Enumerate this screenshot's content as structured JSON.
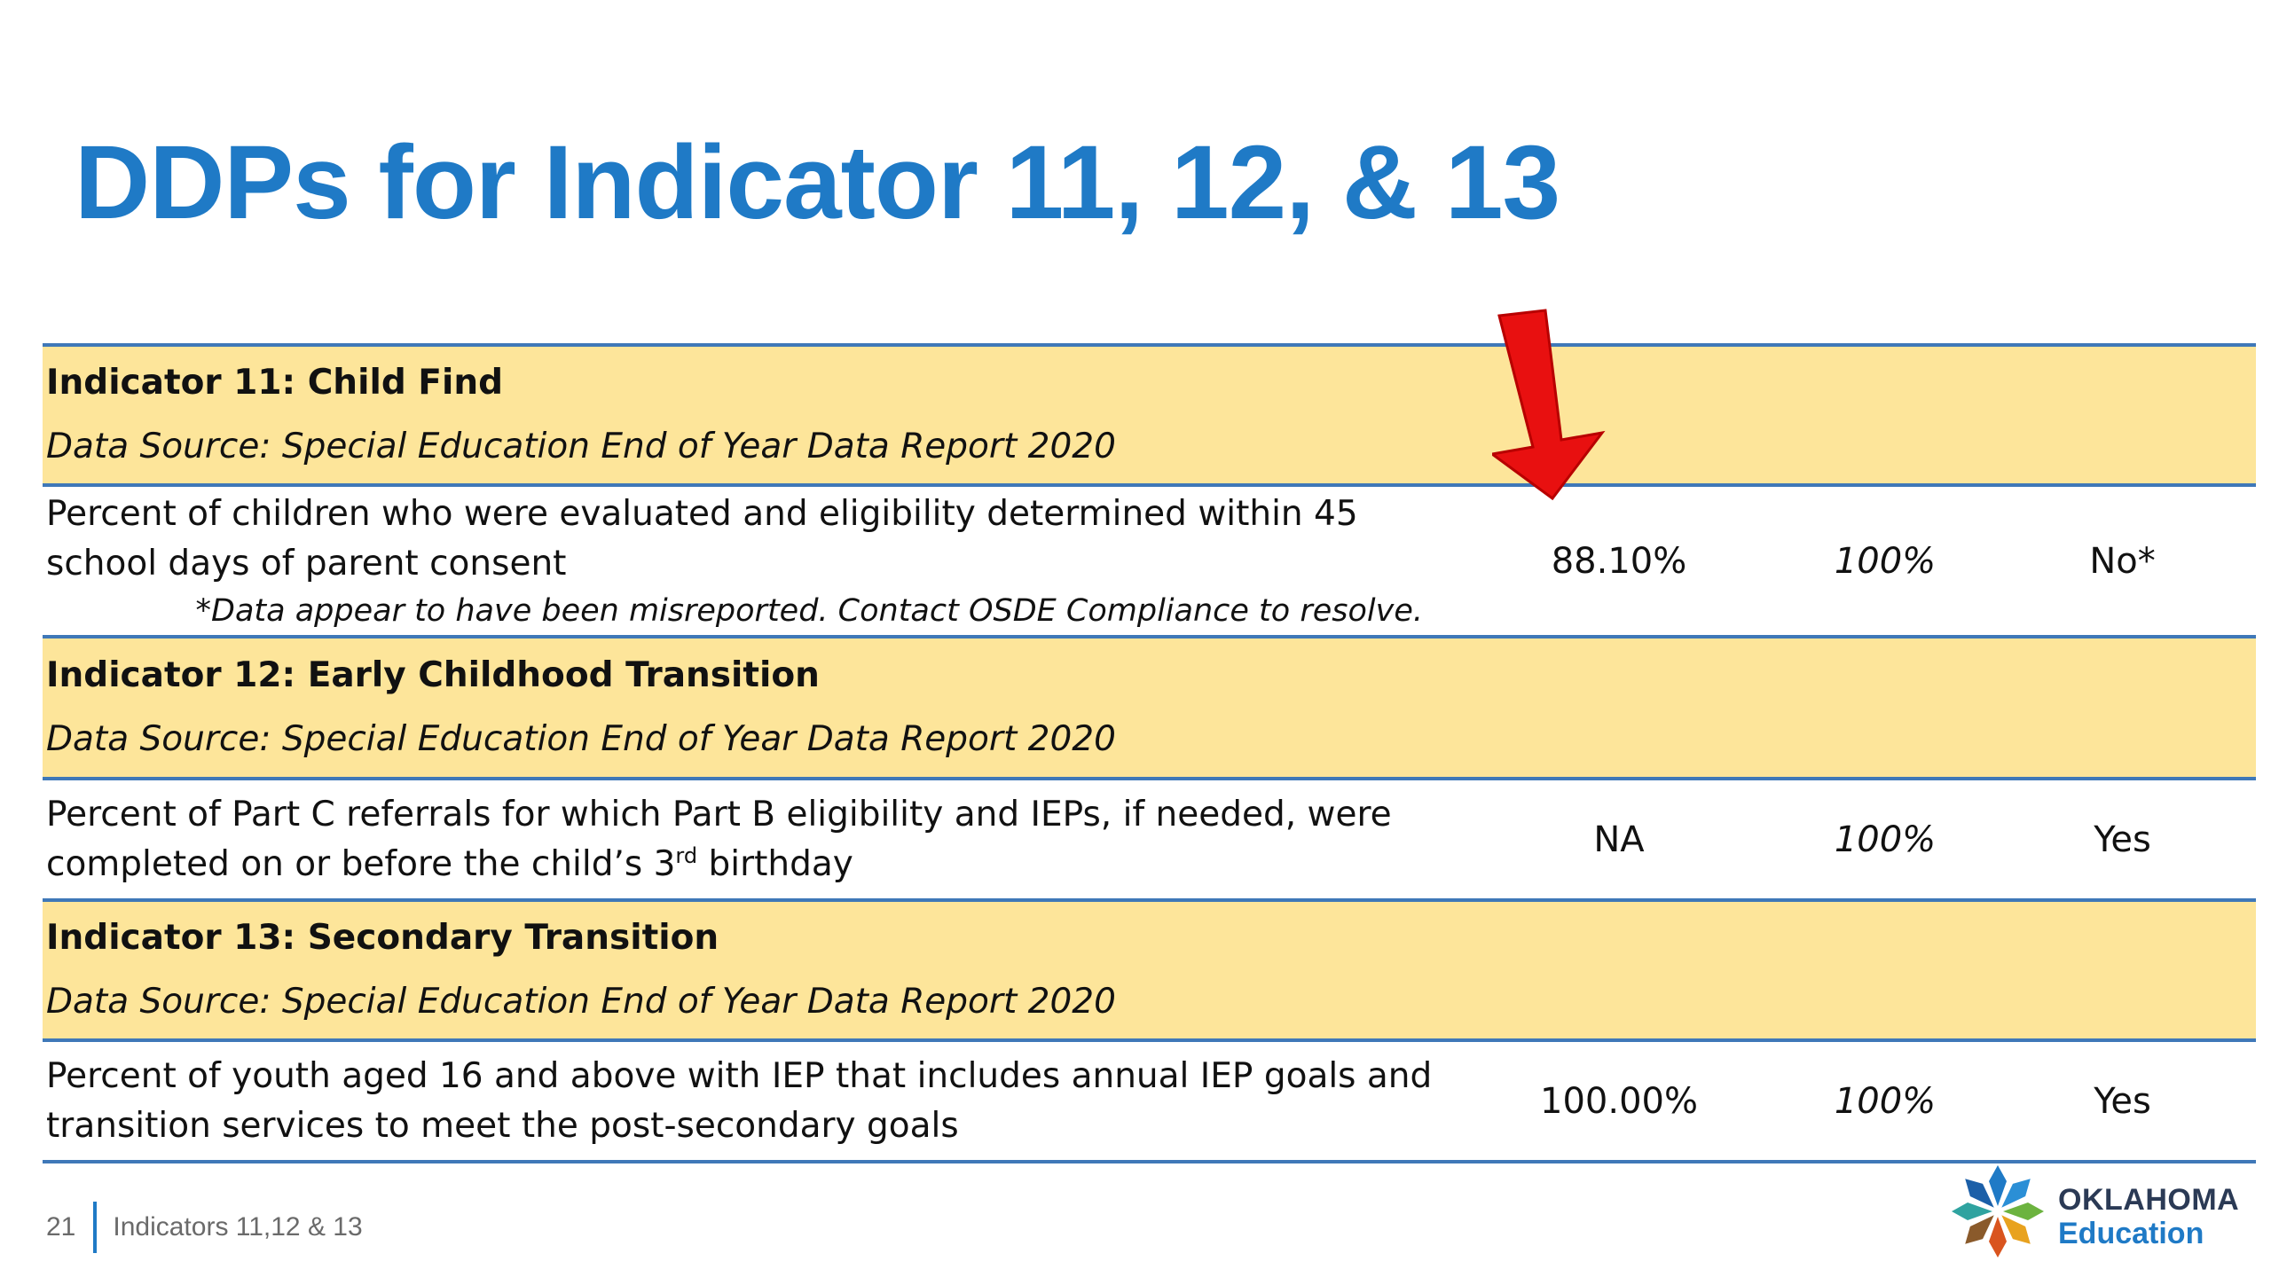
{
  "slide": {
    "title": "DDPs for Indicator 11, 12, & 13"
  },
  "indicators": [
    {
      "title": "Indicator 11:  Child Find",
      "source": "Data Source:  Special Education End of Year Data Report 2020",
      "description": "Percent of children who were evaluated and eligibility determined within 45 school days of parent consent",
      "note": "*Data appear to have been misreported. Contact OSDE Compliance to resolve.",
      "value": "88.10%",
      "target": "100%",
      "met": "No*"
    },
    {
      "title": "Indicator 12: Early Childhood Transition",
      "source": "Data Source:  Special Education End of Year Data Report 2020",
      "description_before_sup": "Percent of Part C referrals for which Part B eligibility and IEPs, if needed, were completed on or before the child’s 3",
      "description_sup": "rd",
      "description_after_sup": " birthday",
      "value": "NA",
      "target": "100%",
      "met": "Yes"
    },
    {
      "title": "Indicator 13:  Secondary Transition",
      "source": "Data Source:  Special Education End of Year Data Report 2020",
      "description": "Percent of youth aged 16 and above with IEP that includes annual IEP goals and transition services to meet the post-secondary goals",
      "value": "100.00%",
      "target": "100%",
      "met": "Yes"
    }
  ],
  "footer": {
    "page_number": "21",
    "section": "Indicators 11,12 & 13"
  },
  "logo": {
    "line1": "OKLAHOMA",
    "line2": "Education"
  },
  "colors": {
    "title": "#1f7ac6",
    "header_fill": "#fde59a",
    "rule": "#3f78b8",
    "arrow": "#e81010"
  }
}
